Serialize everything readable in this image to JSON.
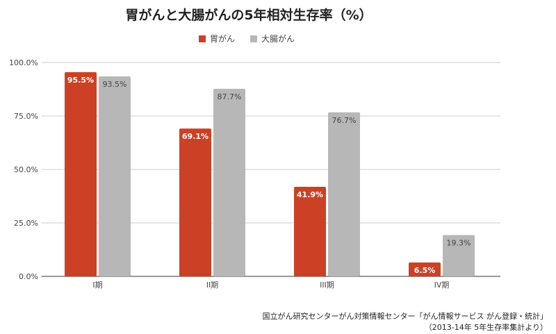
{
  "chart_data": {
    "type": "bar",
    "title": "胃がんと大腸がんの5年相対生存率（%）",
    "categories": [
      "I期",
      "II期",
      "III期",
      "IV期"
    ],
    "series": [
      {
        "name": "胃がん",
        "values": [
          95.5,
          69.1,
          41.9,
          6.5
        ],
        "color": "#cc4125",
        "label_color": "#ffffff"
      },
      {
        "name": "大腸がん",
        "values": [
          93.5,
          87.7,
          76.7,
          19.3
        ],
        "color": "#b7b7b7",
        "label_color": "#444444"
      }
    ],
    "ylim": [
      0,
      100
    ],
    "yticks": [
      "0.0%",
      "25.0%",
      "50.0%",
      "75.0%",
      "100.0%"
    ],
    "ytick_values": [
      0,
      25,
      50,
      75,
      100
    ],
    "grid": true,
    "legend": "top",
    "xlabel": "",
    "ylabel": ""
  },
  "source": {
    "line1": "国立がん研究センターがん対策情報センター「がん情報サービス がん登録・統計」",
    "line2": "（2013-14年 5年生存率集計より）"
  }
}
